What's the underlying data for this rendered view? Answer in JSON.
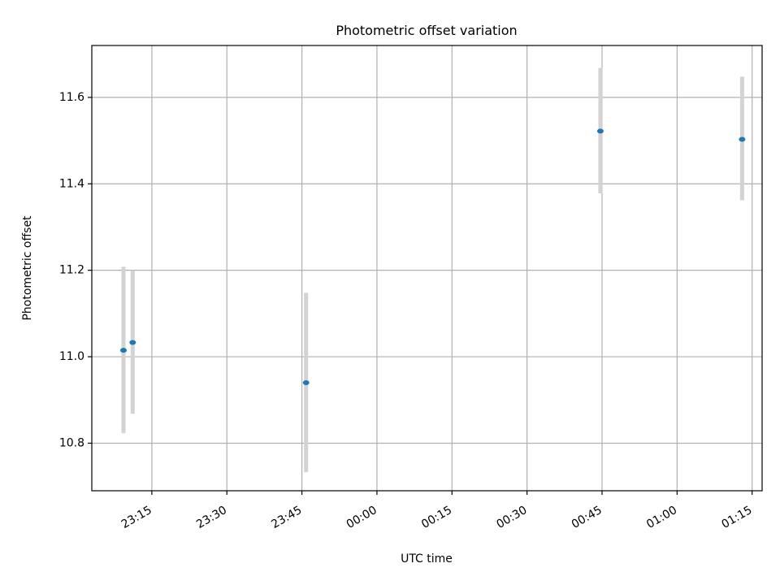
{
  "chart_data": {
    "type": "scatter",
    "title": "Photometric offset variation",
    "xlabel": "UTC time",
    "ylabel": "Photometric offset",
    "xlim": [
      "23:03:00",
      "01:17:00"
    ],
    "ylim": [
      10.69,
      11.72
    ],
    "x_ticks": [
      "23:15",
      "23:30",
      "23:45",
      "00:00",
      "00:15",
      "00:30",
      "00:45",
      "01:00",
      "01:15"
    ],
    "y_ticks": [
      "10.8",
      "11.0",
      "11.2",
      "11.4",
      "11.6"
    ],
    "y_tick_values": [
      10.8,
      11.0,
      11.2,
      11.4,
      11.6
    ],
    "grid": true,
    "series": [
      {
        "x": [
          "23:09:20",
          "23:11:10",
          "23:45:50",
          "00:44:40",
          "01:13:00"
        ],
        "y": [
          11.015,
          11.033,
          10.94,
          11.522,
          11.503
        ],
        "err_low": [
          10.823,
          10.868,
          10.733,
          11.378,
          11.362
        ],
        "err_high": [
          11.208,
          11.2,
          11.148,
          11.668,
          11.648
        ]
      }
    ],
    "colors": {
      "point": "#1f77b4",
      "errorbar": "#d3d3d3",
      "grid": "#b0b0b0",
      "axis": "#000000"
    }
  }
}
